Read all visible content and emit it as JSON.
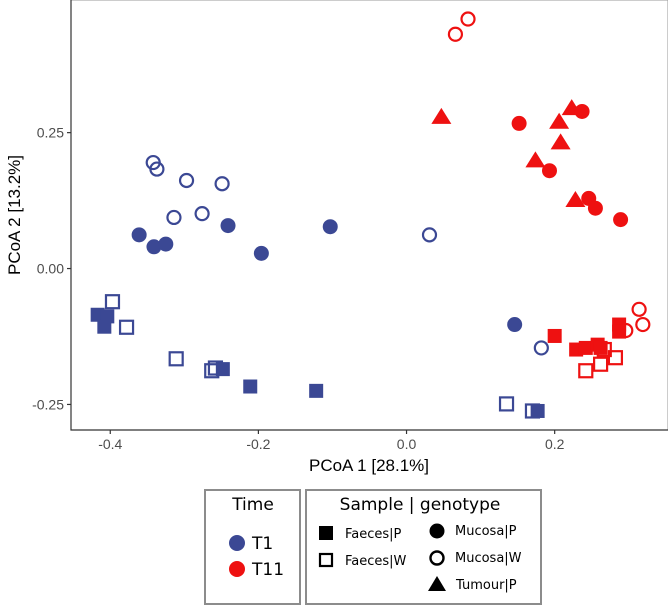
{
  "chart_data": {
    "type": "scatter",
    "title": "",
    "xlabel": "PCoA 1 [28.1%]",
    "ylabel": "PCoA 2 [13.2%]",
    "xlim": [
      -0.453,
      0.353
    ],
    "ylim": [
      -0.297,
      0.494
    ],
    "xticks": [
      -0.4,
      -0.2,
      0.0,
      0.2
    ],
    "xtick_labels": [
      "-0.4",
      "-0.2",
      "0.0",
      "0.2"
    ],
    "yticks": [
      0.25,
      0.0,
      -0.25
    ],
    "ytick_labels": [
      "0.25",
      "0.00",
      "-0.25"
    ],
    "grid": false,
    "colors": {
      "T1": "#3b4894",
      "T11": "#ee1111"
    },
    "legend": {
      "placement": "bottom",
      "time": {
        "title": "Time",
        "entries": [
          "T1",
          "T11"
        ]
      },
      "shape": {
        "title": "Sample | genotype",
        "entries": [
          "Faeces|P",
          "Faeces|W",
          "Mucosa|P",
          "Mucosa|W",
          "Tumour|P"
        ]
      }
    },
    "series": [
      {
        "name": "T1 Mucosa|W",
        "time": "T1",
        "shape": "open-circle",
        "points": [
          [
            -0.342,
            0.195
          ],
          [
            -0.337,
            0.183
          ],
          [
            -0.297,
            0.162
          ],
          [
            -0.249,
            0.156
          ],
          [
            -0.314,
            0.094
          ],
          [
            -0.276,
            0.101
          ],
          [
            0.031,
            0.062
          ],
          [
            0.182,
            -0.146
          ]
        ]
      },
      {
        "name": "T1 Mucosa|P",
        "time": "T1",
        "shape": "circle",
        "points": [
          [
            -0.361,
            0.062
          ],
          [
            -0.341,
            0.04
          ],
          [
            -0.325,
            0.045
          ],
          [
            -0.241,
            0.079
          ],
          [
            -0.196,
            0.028
          ],
          [
            -0.103,
            0.077
          ],
          [
            0.146,
            -0.103
          ]
        ]
      },
      {
        "name": "T1 Faeces|W",
        "time": "T1",
        "shape": "open-square",
        "points": [
          [
            -0.397,
            -0.061
          ],
          [
            -0.378,
            -0.108
          ],
          [
            -0.311,
            -0.166
          ],
          [
            -0.263,
            -0.188
          ],
          [
            -0.258,
            -0.183
          ],
          [
            0.135,
            -0.249
          ],
          [
            0.17,
            -0.262
          ]
        ]
      },
      {
        "name": "T1 Faeces|P",
        "time": "T1",
        "shape": "square",
        "points": [
          [
            -0.417,
            -0.085
          ],
          [
            -0.404,
            -0.088
          ],
          [
            -0.408,
            -0.107
          ],
          [
            -0.248,
            -0.185
          ],
          [
            -0.211,
            -0.217
          ],
          [
            -0.122,
            -0.225
          ],
          [
            0.177,
            -0.262
          ]
        ]
      },
      {
        "name": "T11 Mucosa|W",
        "time": "T11",
        "shape": "open-circle",
        "points": [
          [
            0.083,
            0.459
          ],
          [
            0.066,
            0.431
          ],
          [
            0.314,
            -0.075
          ],
          [
            0.319,
            -0.103
          ],
          [
            0.296,
            -0.114
          ]
        ]
      },
      {
        "name": "T11 Tumour|P",
        "time": "T11",
        "shape": "triangle",
        "points": [
          [
            0.047,
            0.279
          ],
          [
            0.223,
            0.295
          ],
          [
            0.206,
            0.27
          ],
          [
            0.208,
            0.232
          ],
          [
            0.174,
            0.199
          ],
          [
            0.228,
            0.126
          ]
        ]
      },
      {
        "name": "T11 Mucosa|P",
        "time": "T11",
        "shape": "circle",
        "points": [
          [
            0.152,
            0.267
          ],
          [
            0.237,
            0.289
          ],
          [
            0.193,
            0.18
          ],
          [
            0.246,
            0.129
          ],
          [
            0.255,
            0.111
          ],
          [
            0.289,
            0.09
          ]
        ]
      },
      {
        "name": "T11 Faeces|W",
        "time": "T11",
        "shape": "open-square",
        "points": [
          [
            0.282,
            -0.164
          ],
          [
            0.262,
            -0.176
          ],
          [
            0.242,
            -0.188
          ],
          [
            0.267,
            -0.149
          ]
        ]
      },
      {
        "name": "T11 Faeces|P",
        "time": "T11",
        "shape": "square",
        "points": [
          [
            0.2,
            -0.124
          ],
          [
            0.287,
            -0.103
          ],
          [
            0.287,
            -0.116
          ],
          [
            0.229,
            -0.149
          ],
          [
            0.242,
            -0.146
          ],
          [
            0.258,
            -0.14
          ],
          [
            0.262,
            -0.146
          ]
        ]
      }
    ]
  }
}
